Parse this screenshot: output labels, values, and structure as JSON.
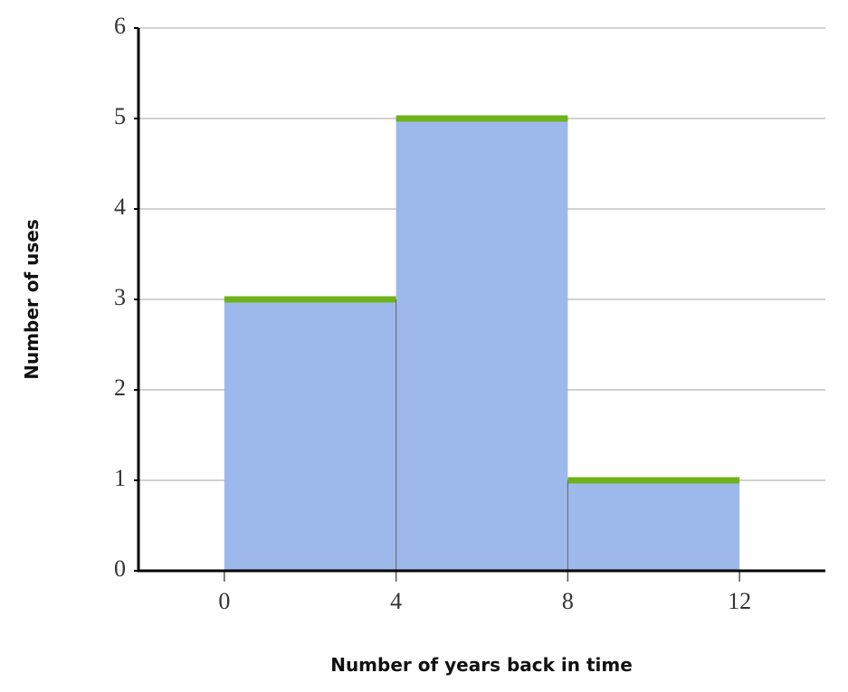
{
  "chart_data": {
    "type": "histogram",
    "x_label": "Number of years back in time",
    "y_label": "Number of uses",
    "bins": [
      0,
      4,
      8,
      12
    ],
    "values": [
      3,
      5,
      1
    ],
    "color": "#9db9ec",
    "highlight_color": "#6fb21a",
    "xlim": [
      -2,
      14
    ],
    "xticks": [
      0,
      4,
      8,
      12
    ],
    "ylim": [
      0,
      6
    ],
    "yticks": [
      0,
      1,
      2,
      3,
      4,
      5,
      6
    ],
    "grid": true
  }
}
